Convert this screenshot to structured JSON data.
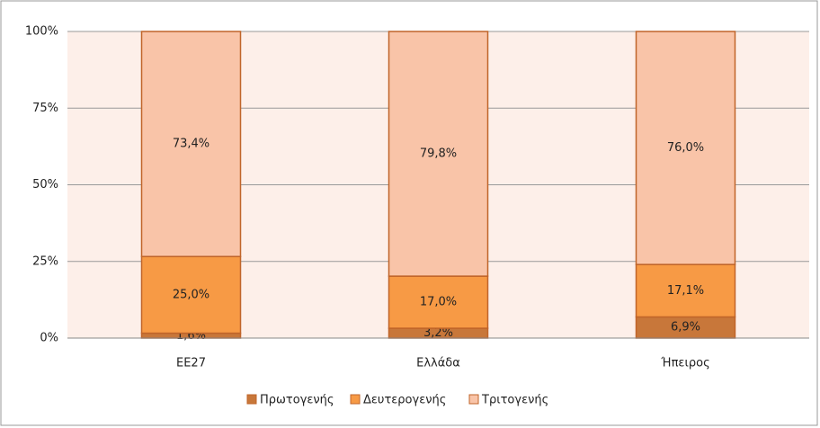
{
  "chart_data": {
    "type": "stacked_bar",
    "categories": [
      "ΕΕ27",
      "Ελλάδα",
      "Ήπειρος"
    ],
    "series": [
      {
        "name": "Πρωτογενής",
        "color": "#c8773a",
        "values": [
          1.6,
          3.2,
          6.9
        ],
        "value_labels": [
          "1,6%",
          "3,2%",
          "6,9%"
        ]
      },
      {
        "name": "Δευτερογενής",
        "color": "#f79a45",
        "values": [
          25.0,
          17.0,
          17.1
        ],
        "value_labels": [
          "25,0%",
          "17,0%",
          "17,1%"
        ]
      },
      {
        "name": "Τριτογενής",
        "color": "#f9c4a8",
        "values": [
          73.4,
          79.8,
          76.0
        ],
        "value_labels": [
          "73,4%",
          "79,8%",
          "76,0%"
        ]
      }
    ],
    "ylim": [
      0,
      100
    ],
    "yticks": [
      {
        "value": 0,
        "label": "0%"
      },
      {
        "value": 25,
        "label": "25%"
      },
      {
        "value": 50,
        "label": "50%"
      },
      {
        "value": 75,
        "label": "75%"
      },
      {
        "value": 100,
        "label": "100%"
      }
    ],
    "grid": true,
    "legend": "bottom"
  }
}
